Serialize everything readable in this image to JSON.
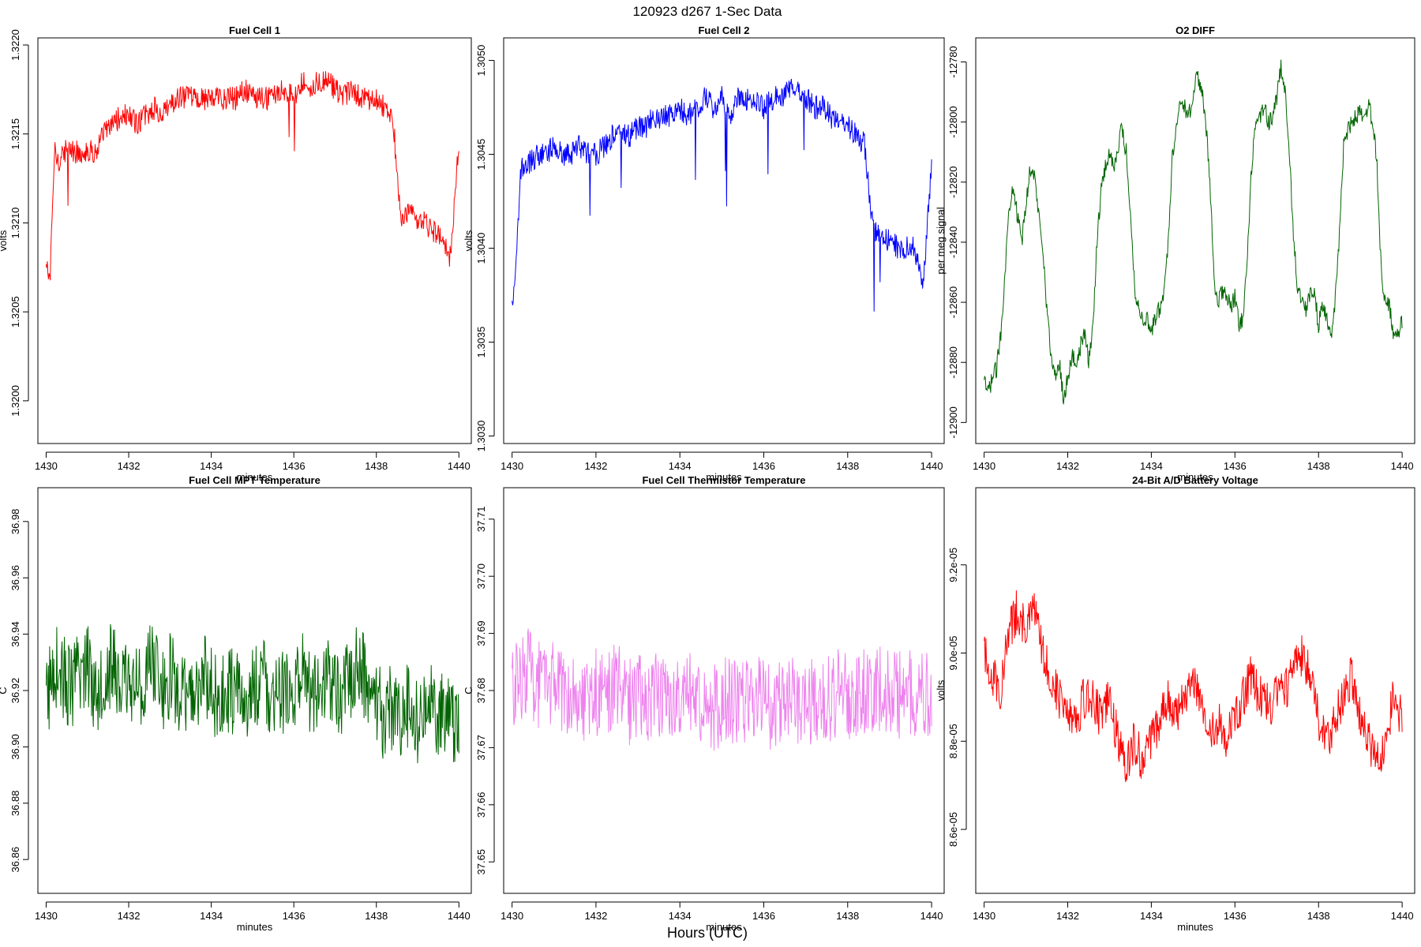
{
  "figure": {
    "title": "120923   d267   1-Sec Data",
    "bottom_label": "Hours (UTC)"
  },
  "chart_data": [
    {
      "type": "line",
      "title": "Fuel Cell 1",
      "xlabel": "minutes",
      "ylabel": "volts",
      "color": "#ff0000",
      "xlim": [
        1429.8,
        1440.3
      ],
      "ylim": [
        1.31976,
        1.32204
      ],
      "xticks": [
        "1430",
        "1432",
        "1434",
        "1436",
        "1438",
        "1440"
      ],
      "xtick_values": [
        1430,
        1432,
        1434,
        1436,
        1438,
        1440
      ],
      "yticks": [
        "1.3200",
        "1.3205",
        "1.3210",
        "1.3215",
        "1.3220"
      ],
      "ytick_values": [
        1.32,
        1.3205,
        1.321,
        1.3215,
        1.322
      ],
      "series": [
        {
          "x": [
            1430.0,
            1430.1,
            1430.2,
            1430.3,
            1430.4,
            1430.6,
            1430.8,
            1431.0,
            1431.2,
            1431.4,
            1431.6,
            1431.8,
            1432.0,
            1432.2,
            1432.4,
            1432.6,
            1432.8,
            1433.0,
            1433.2,
            1433.4,
            1433.6,
            1433.8,
            1434.0,
            1434.2,
            1434.4,
            1434.6,
            1434.8,
            1435.0,
            1435.2,
            1435.4,
            1435.6,
            1435.8,
            1436.0,
            1436.2,
            1436.4,
            1436.6,
            1436.8,
            1437.0,
            1437.2,
            1437.4,
            1437.6,
            1437.8,
            1438.0,
            1438.2,
            1438.4,
            1438.6,
            1438.8,
            1439.0,
            1439.2,
            1439.4,
            1439.6,
            1439.8,
            1440.0
          ],
          "y": [
            1.32075,
            1.3207,
            1.3214,
            1.32135,
            1.3214,
            1.3214,
            1.3214,
            1.3214,
            1.3214,
            1.3215,
            1.32155,
            1.3216,
            1.3216,
            1.32155,
            1.3216,
            1.32165,
            1.3216,
            1.32165,
            1.3217,
            1.3217,
            1.3217,
            1.3217,
            1.3217,
            1.3217,
            1.3217,
            1.3217,
            1.32175,
            1.3217,
            1.3217,
            1.3217,
            1.32175,
            1.32175,
            1.3217,
            1.3218,
            1.32175,
            1.3218,
            1.3218,
            1.32175,
            1.3217,
            1.32175,
            1.3217,
            1.3217,
            1.3217,
            1.32165,
            1.3216,
            1.321,
            1.32105,
            1.321,
            1.321,
            1.32095,
            1.3209,
            1.3208,
            1.32145
          ]
        }
      ]
    },
    {
      "type": "line",
      "title": "Fuel Cell 2",
      "xlabel": "minutes",
      "ylabel": "volts",
      "color": "#0000ff",
      "xlim": [
        1429.8,
        1440.3
      ],
      "ylim": [
        1.30296,
        1.30512
      ],
      "xticks": [
        "1430",
        "1432",
        "1434",
        "1436",
        "1438",
        "1440"
      ],
      "xtick_values": [
        1430,
        1432,
        1434,
        1436,
        1438,
        1440
      ],
      "yticks": [
        "1.3030",
        "1.3035",
        "1.3040",
        "1.3045",
        "1.3050"
      ],
      "ytick_values": [
        1.303,
        1.3035,
        1.304,
        1.3045,
        1.305
      ],
      "series": [
        {
          "x": [
            1430.0,
            1430.1,
            1430.2,
            1430.3,
            1430.4,
            1430.6,
            1430.8,
            1431.0,
            1431.2,
            1431.4,
            1431.6,
            1431.8,
            1432.0,
            1432.2,
            1432.4,
            1432.6,
            1432.8,
            1433.0,
            1433.2,
            1433.4,
            1433.6,
            1433.8,
            1434.0,
            1434.2,
            1434.4,
            1434.6,
            1434.8,
            1435.0,
            1435.2,
            1435.4,
            1435.6,
            1435.8,
            1436.0,
            1436.2,
            1436.4,
            1436.6,
            1436.8,
            1437.0,
            1437.2,
            1437.4,
            1437.6,
            1437.8,
            1438.0,
            1438.2,
            1438.4,
            1438.6,
            1438.8,
            1439.0,
            1439.2,
            1439.4,
            1439.6,
            1439.8,
            1440.0
          ],
          "y": [
            1.3037,
            1.3039,
            1.3044,
            1.30445,
            1.30445,
            1.3045,
            1.3045,
            1.30455,
            1.3045,
            1.3045,
            1.30455,
            1.3045,
            1.3045,
            1.30455,
            1.3046,
            1.3046,
            1.3046,
            1.30465,
            1.30465,
            1.3047,
            1.3047,
            1.3047,
            1.30475,
            1.3047,
            1.30475,
            1.3048,
            1.30475,
            1.3048,
            1.3047,
            1.3048,
            1.3048,
            1.3048,
            1.30475,
            1.3048,
            1.3048,
            1.30485,
            1.30485,
            1.3048,
            1.30475,
            1.30475,
            1.3047,
            1.3047,
            1.30465,
            1.3046,
            1.30455,
            1.3041,
            1.30405,
            1.30405,
            1.304,
            1.304,
            1.304,
            1.3038,
            1.30445
          ]
        }
      ]
    },
    {
      "type": "line",
      "title": "O2 DIFF",
      "xlabel": "minutes",
      "ylabel": "per meg signal",
      "color": "#006400",
      "xlim": [
        1429.8,
        1440.3
      ],
      "ylim": [
        -12907,
        -12772
      ],
      "xticks": [
        "1430",
        "1432",
        "1434",
        "1436",
        "1438",
        "1440"
      ],
      "xtick_values": [
        1430,
        1432,
        1434,
        1436,
        1438,
        1440
      ],
      "yticks": [
        "-12900",
        "-12880",
        "-12860",
        "-12840",
        "-12820",
        "-12800",
        "-12780"
      ],
      "ytick_values": [
        -12900,
        -12880,
        -12860,
        -12840,
        -12820,
        -12800,
        -12780
      ],
      "series": [
        {
          "x": [
            1430.0,
            1430.1,
            1430.2,
            1430.3,
            1430.4,
            1430.5,
            1430.6,
            1430.7,
            1430.8,
            1430.9,
            1431.0,
            1431.1,
            1431.2,
            1431.3,
            1431.4,
            1431.5,
            1431.6,
            1431.7,
            1431.8,
            1431.9,
            1432.0,
            1432.1,
            1432.2,
            1432.3,
            1432.4,
            1432.5,
            1432.6,
            1432.7,
            1432.8,
            1432.9,
            1433.0,
            1433.1,
            1433.2,
            1433.3,
            1433.4,
            1433.5,
            1433.6,
            1433.7,
            1433.8,
            1433.9,
            1434.0,
            1434.1,
            1434.2,
            1434.3,
            1434.4,
            1434.5,
            1434.6,
            1434.7,
            1434.8,
            1434.9,
            1435.0,
            1435.1,
            1435.2,
            1435.3,
            1435.4,
            1435.5,
            1435.6,
            1435.7,
            1435.8,
            1435.9,
            1436.0,
            1436.1,
            1436.2,
            1436.3,
            1436.4,
            1436.5,
            1436.6,
            1436.7,
            1436.8,
            1436.9,
            1437.0,
            1437.1,
            1437.2,
            1437.3,
            1437.4,
            1437.5,
            1437.6,
            1437.7,
            1437.8,
            1437.9,
            1438.0,
            1438.1,
            1438.2,
            1438.3,
            1438.4,
            1438.5,
            1438.6,
            1438.7,
            1438.8,
            1438.9,
            1439.0,
            1439.1,
            1439.2,
            1439.3,
            1439.4,
            1439.5,
            1439.6,
            1439.7,
            1439.8,
            1439.9,
            1440.0
          ],
          "y": [
            -12887,
            -12890,
            -12885,
            -12882,
            -12870,
            -12850,
            -12828,
            -12820,
            -12832,
            -12840,
            -12828,
            -12815,
            -12818,
            -12830,
            -12840,
            -12862,
            -12878,
            -12885,
            -12880,
            -12892,
            -12885,
            -12878,
            -12880,
            -12875,
            -12870,
            -12880,
            -12868,
            -12840,
            -12822,
            -12815,
            -12810,
            -12815,
            -12808,
            -12802,
            -12810,
            -12830,
            -12855,
            -12862,
            -12866,
            -12865,
            -12870,
            -12865,
            -12862,
            -12858,
            -12840,
            -12812,
            -12800,
            -12792,
            -12795,
            -12798,
            -12790,
            -12785,
            -12788,
            -12800,
            -12820,
            -12852,
            -12860,
            -12856,
            -12858,
            -12862,
            -12858,
            -12868,
            -12865,
            -12845,
            -12815,
            -12800,
            -12798,
            -12795,
            -12800,
            -12798,
            -12792,
            -12782,
            -12790,
            -12810,
            -12838,
            -12855,
            -12858,
            -12862,
            -12858,
            -12856,
            -12868,
            -12860,
            -12865,
            -12872,
            -12860,
            -12838,
            -12808,
            -12803,
            -12800,
            -12798,
            -12796,
            -12800,
            -12795,
            -12800,
            -12815,
            -12850,
            -12860,
            -12862,
            -12872,
            -12870,
            -12866
          ]
        }
      ]
    },
    {
      "type": "line",
      "title": "Fuel Cell MPT Temperature",
      "xlabel": "minutes",
      "ylabel": "C",
      "color": "#006400",
      "xlim": [
        1429.8,
        1440.3
      ],
      "ylim": [
        36.848,
        36.992
      ],
      "xticks": [
        "1430",
        "1432",
        "1434",
        "1436",
        "1438",
        "1440"
      ],
      "xtick_values": [
        1430,
        1432,
        1434,
        1436,
        1438,
        1440
      ],
      "yticks": [
        "36.86",
        "36.88",
        "36.90",
        "36.92",
        "36.94",
        "36.96",
        "36.98"
      ],
      "ytick_values": [
        36.86,
        36.88,
        36.9,
        36.92,
        36.94,
        36.96,
        36.98
      ],
      "series": [
        {
          "x": [
            1430.0,
            1430.2,
            1430.4,
            1430.6,
            1430.8,
            1431.0,
            1431.2,
            1431.4,
            1431.6,
            1431.8,
            1432.0,
            1432.2,
            1432.4,
            1432.6,
            1432.8,
            1433.0,
            1433.2,
            1433.4,
            1433.6,
            1433.8,
            1434.0,
            1434.2,
            1434.4,
            1434.6,
            1434.8,
            1435.0,
            1435.2,
            1435.4,
            1435.6,
            1435.8,
            1436.0,
            1436.2,
            1436.4,
            1436.6,
            1436.8,
            1437.0,
            1437.2,
            1437.4,
            1437.6,
            1437.8,
            1438.0,
            1438.2,
            1438.4,
            1438.6,
            1438.8,
            1439.0,
            1439.2,
            1439.4,
            1439.6,
            1439.8,
            1440.0
          ],
          "y": [
            36.915,
            36.93,
            36.925,
            36.92,
            36.925,
            36.93,
            36.92,
            36.925,
            36.93,
            36.92,
            36.925,
            36.92,
            36.925,
            36.93,
            36.92,
            36.925,
            36.92,
            36.915,
            36.92,
            36.925,
            36.92,
            36.915,
            36.92,
            36.92,
            36.915,
            36.92,
            36.925,
            36.92,
            36.915,
            36.92,
            36.92,
            36.925,
            36.92,
            36.92,
            36.925,
            36.92,
            36.92,
            36.925,
            36.93,
            36.92,
            36.915,
            36.91,
            36.915,
            36.91,
            36.915,
            36.91,
            36.91,
            36.915,
            36.91,
            36.91,
            36.91
          ]
        }
      ]
    },
    {
      "type": "line",
      "title": "Fuel Cell Thermistor Temperature",
      "xlabel": "minutes",
      "ylabel": "C",
      "color": "#ee82ee",
      "xlim": [
        1429.8,
        1440.3
      ],
      "ylim": [
        37.6445,
        37.7155
      ],
      "xticks": [
        "1430",
        "1432",
        "1434",
        "1436",
        "1438",
        "1440"
      ],
      "xtick_values": [
        1430,
        1432,
        1434,
        1436,
        1438,
        1440
      ],
      "yticks": [
        "37.65",
        "37.66",
        "37.67",
        "37.68",
        "37.69",
        "37.70",
        "37.71"
      ],
      "ytick_values": [
        37.65,
        37.66,
        37.67,
        37.68,
        37.69,
        37.7,
        37.71
      ],
      "series": [
        {
          "x": [
            1430.0,
            1430.2,
            1430.4,
            1430.6,
            1430.8,
            1431.0,
            1431.2,
            1431.4,
            1431.6,
            1431.8,
            1432.0,
            1432.2,
            1432.4,
            1432.6,
            1432.8,
            1433.0,
            1433.2,
            1433.4,
            1433.6,
            1433.8,
            1434.0,
            1434.2,
            1434.4,
            1434.6,
            1434.8,
            1435.0,
            1435.2,
            1435.4,
            1435.6,
            1435.8,
            1436.0,
            1436.2,
            1436.4,
            1436.6,
            1436.8,
            1437.0,
            1437.2,
            1437.4,
            1437.6,
            1437.8,
            1438.0,
            1438.2,
            1438.4,
            1438.6,
            1438.8,
            1439.0,
            1439.2,
            1439.4,
            1439.6,
            1439.8,
            1440.0
          ],
          "y": [
            37.68,
            37.682,
            37.684,
            37.681,
            37.68,
            37.682,
            37.679,
            37.681,
            37.68,
            37.678,
            37.68,
            37.679,
            37.681,
            37.68,
            37.678,
            37.68,
            37.678,
            37.68,
            37.679,
            37.678,
            37.677,
            37.679,
            37.678,
            37.679,
            37.677,
            37.678,
            37.679,
            37.677,
            37.678,
            37.679,
            37.678,
            37.677,
            37.678,
            37.68,
            37.678,
            37.677,
            37.678,
            37.679,
            37.678,
            37.68,
            37.679,
            37.678,
            37.68,
            37.679,
            37.681,
            37.68,
            37.679,
            37.68,
            37.679,
            37.68,
            37.679
          ]
        }
      ]
    },
    {
      "type": "line",
      "title": "24-Bit A/D Battery Voltage",
      "xlabel": "minutes",
      "ylabel": "volts",
      "color": "#ff0000",
      "xlim": [
        1429.8,
        1440.3
      ],
      "ylim": [
        8.455e-05,
        9.375e-05
      ],
      "xticks": [
        "1430",
        "1432",
        "1434",
        "1436",
        "1438",
        "1440"
      ],
      "xtick_values": [
        1430,
        1432,
        1434,
        1436,
        1438,
        1440
      ],
      "yticks": [
        "8.6e-05",
        "8.8e-05",
        "9.0e-05",
        "9.2e-05"
      ],
      "ytick_values": [
        8.6e-05,
        8.8e-05,
        9e-05,
        9.2e-05
      ],
      "series": [
        {
          "x": [
            1430.0,
            1430.2,
            1430.4,
            1430.6,
            1430.8,
            1431.0,
            1431.2,
            1431.4,
            1431.6,
            1431.8,
            1432.0,
            1432.2,
            1432.4,
            1432.6,
            1432.8,
            1433.0,
            1433.2,
            1433.4,
            1433.6,
            1433.8,
            1434.0,
            1434.2,
            1434.4,
            1434.6,
            1434.8,
            1435.0,
            1435.2,
            1435.4,
            1435.6,
            1435.8,
            1436.0,
            1436.2,
            1436.4,
            1436.6,
            1436.8,
            1437.0,
            1437.2,
            1437.4,
            1437.6,
            1437.8,
            1438.0,
            1438.2,
            1438.4,
            1438.6,
            1438.8,
            1439.0,
            1439.2,
            1439.4,
            1439.6,
            1439.8,
            1440.0
          ],
          "y": [
            9e-05,
            8.95e-05,
            8.92e-05,
            9.05e-05,
            9.1e-05,
            9.05e-05,
            9.1e-05,
            9e-05,
            8.95e-05,
            8.9e-05,
            8.88e-05,
            8.85e-05,
            8.9e-05,
            8.9e-05,
            8.85e-05,
            8.9e-05,
            8.8e-05,
            8.75e-05,
            8.8e-05,
            8.75e-05,
            8.8e-05,
            8.85e-05,
            8.9e-05,
            8.85e-05,
            8.9e-05,
            8.95e-05,
            8.9e-05,
            8.8e-05,
            8.85e-05,
            8.8e-05,
            8.85e-05,
            8.9e-05,
            8.95e-05,
            8.9e-05,
            8.88e-05,
            8.9e-05,
            8.92e-05,
            8.95e-05,
            9e-05,
            8.95e-05,
            8.85e-05,
            8.8e-05,
            8.85e-05,
            8.9e-05,
            8.95e-05,
            8.85e-05,
            8.8e-05,
            8.75e-05,
            8.8e-05,
            8.9e-05,
            8.85e-05
          ]
        }
      ]
    }
  ]
}
